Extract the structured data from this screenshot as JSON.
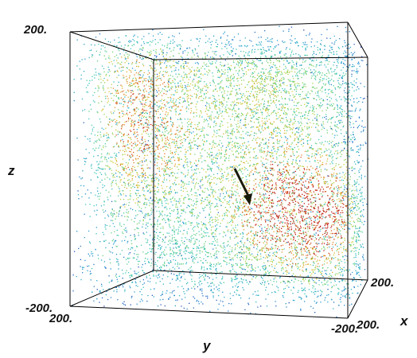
{
  "chart_data": {
    "type": "scatter",
    "title": "",
    "projection": "3d",
    "axes": {
      "x_label": "x",
      "y_label": "y",
      "z_label": "z"
    },
    "x_range": [
      -200,
      200
    ],
    "y_range": [
      -200,
      200
    ],
    "z_range": [
      -200,
      200
    ],
    "tick_labels": {
      "z_top": "200.",
      "z_bottom": "-200.",
      "y_left": "200.",
      "y_right": "-200.",
      "x_near": "200.",
      "x_far": "200."
    },
    "colormap": "rainbow (blue = low density, red = high density)",
    "clusters": [
      {
        "x": 40,
        "y": -60,
        "z": -60,
        "intensity": 1.0
      },
      {
        "x": 20,
        "y": -150,
        "z": -80,
        "intensity": 0.9
      },
      {
        "x": -40,
        "y": 140,
        "z": 20,
        "intensity": 0.7
      },
      {
        "x": -100,
        "y": 120,
        "z": 120,
        "intensity": 0.7
      },
      {
        "x": 30,
        "y": -40,
        "z": 120,
        "intensity": 0.5
      }
    ],
    "arrow": {
      "from": {
        "x": 0,
        "y": 0,
        "z": 40
      },
      "to": {
        "x": 0,
        "y": -10,
        "z": -10
      },
      "color": "#1a1a0a"
    },
    "grid": false,
    "box": true
  }
}
